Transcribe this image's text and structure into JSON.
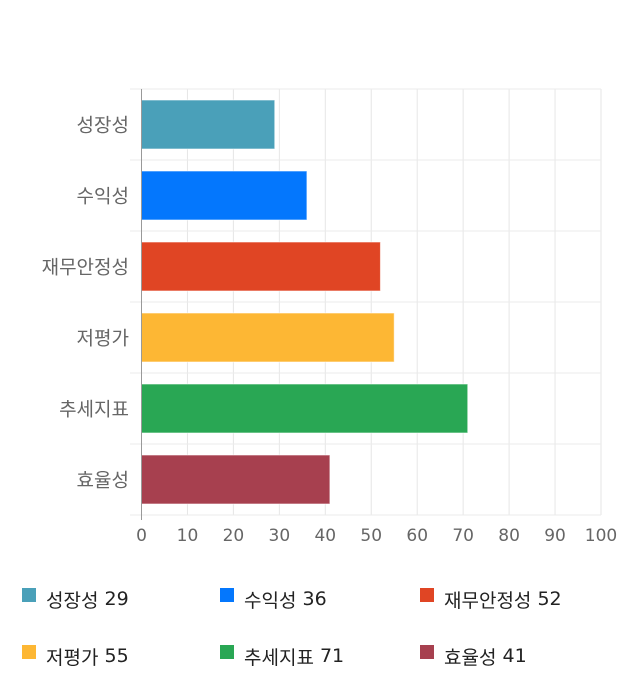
{
  "chart_data": {
    "type": "bar",
    "orientation": "horizontal",
    "categories": [
      "성장성",
      "수익성",
      "재무안정성",
      "저평가",
      "추세지표",
      "효율성"
    ],
    "values": [
      29,
      36,
      52,
      55,
      71,
      41
    ],
    "colors": [
      "#4aa0b9",
      "#0477fd",
      "#e04524",
      "#fdb734",
      "#29a754",
      "#a7404f"
    ],
    "xlim": [
      0,
      100
    ],
    "xticks": [
      0,
      10,
      20,
      30,
      40,
      50,
      60,
      70,
      80,
      90,
      100
    ],
    "grid": true,
    "legend_position": "bottom"
  },
  "legend": [
    {
      "label": "성장성",
      "value": "29"
    },
    {
      "label": "수익성",
      "value": "36"
    },
    {
      "label": "재무안정성",
      "value": "52"
    },
    {
      "label": "저평가",
      "value": "55"
    },
    {
      "label": "추세지표",
      "value": "71"
    },
    {
      "label": "효율성",
      "value": "41"
    }
  ]
}
